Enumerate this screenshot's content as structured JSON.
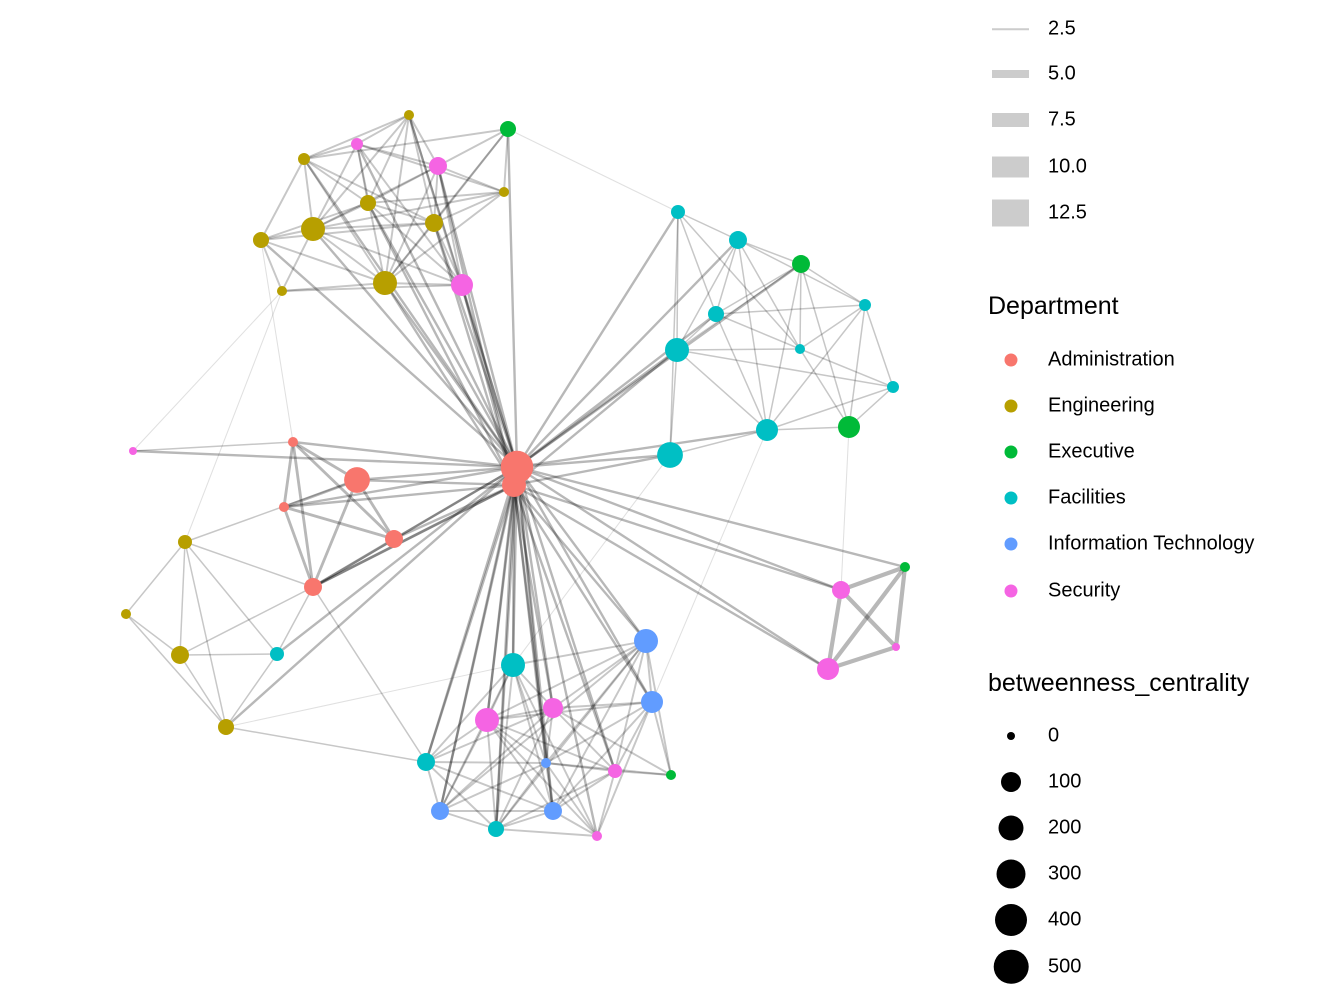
{
  "legend_weight": {
    "items": [
      {
        "label": "2.5",
        "value": 2.5
      },
      {
        "label": "5.0",
        "value": 5.0
      },
      {
        "label": "7.5",
        "value": 7.5
      },
      {
        "label": "10.0",
        "value": 10.0
      },
      {
        "label": "12.5",
        "value": 12.5
      }
    ],
    "color": "#CCCCCC"
  },
  "legend_department": {
    "title": "Department",
    "items": [
      {
        "label": "Administration",
        "color": "#F8766D"
      },
      {
        "label": "Engineering",
        "color": "#B79F00"
      },
      {
        "label": "Executive",
        "color": "#00BA38"
      },
      {
        "label": "Facilities",
        "color": "#00BFC4"
      },
      {
        "label": "Information Technology",
        "color": "#619CFF"
      },
      {
        "label": "Security",
        "color": "#F564E3"
      }
    ]
  },
  "legend_centrality": {
    "title": "betweenness_centrality",
    "items": [
      {
        "label": "0",
        "value": 0
      },
      {
        "label": "100",
        "value": 100
      },
      {
        "label": "200",
        "value": 200
      },
      {
        "label": "300",
        "value": 300
      },
      {
        "label": "400",
        "value": 400
      },
      {
        "label": "500",
        "value": 500
      }
    ]
  },
  "nodes": [
    {
      "dept": 0,
      "betweenness": 420
    },
    {
      "dept": 0,
      "betweenness": 180
    },
    {
      "dept": 0,
      "betweenness": 220
    },
    {
      "dept": 0,
      "betweenness": 17
    },
    {
      "dept": 0,
      "betweenness": 17
    },
    {
      "dept": 0,
      "betweenness": 83
    },
    {
      "dept": 0,
      "betweenness": 83
    },
    {
      "dept": 5,
      "betweenness": 0
    },
    {
      "dept": 1,
      "betweenness": 50
    },
    {
      "dept": 1,
      "betweenness": 17
    },
    {
      "dept": 1,
      "betweenness": 83
    },
    {
      "dept": 1,
      "betweenness": 67
    },
    {
      "dept": 3,
      "betweenness": 50
    },
    {
      "dept": 1,
      "betweenness": 17
    },
    {
      "dept": 2,
      "betweenness": 67
    },
    {
      "dept": 1,
      "betweenness": 33
    },
    {
      "dept": 5,
      "betweenness": 33
    },
    {
      "dept": 5,
      "betweenness": 83
    },
    {
      "dept": 1,
      "betweenness": 17
    },
    {
      "dept": 1,
      "betweenness": 67
    },
    {
      "dept": 1,
      "betweenness": 180
    },
    {
      "dept": 1,
      "betweenness": 83
    },
    {
      "dept": 1,
      "betweenness": 67
    },
    {
      "dept": 1,
      "betweenness": 180
    },
    {
      "dept": 5,
      "betweenness": 140
    },
    {
      "dept": 1,
      "betweenness": 17
    },
    {
      "dept": 3,
      "betweenness": 50
    },
    {
      "dept": 3,
      "betweenness": 83
    },
    {
      "dept": 2,
      "betweenness": 83
    },
    {
      "dept": 3,
      "betweenness": 33
    },
    {
      "dept": 3,
      "betweenness": 67
    },
    {
      "dept": 3,
      "betweenness": 180
    },
    {
      "dept": 3,
      "betweenness": 17
    },
    {
      "dept": 3,
      "betweenness": 33
    },
    {
      "dept": 3,
      "betweenness": 140
    },
    {
      "dept": 2,
      "betweenness": 140
    },
    {
      "dept": 3,
      "betweenness": 220
    },
    {
      "dept": 5,
      "betweenness": 83
    },
    {
      "dept": 2,
      "betweenness": 17
    },
    {
      "dept": 5,
      "betweenness": 0
    },
    {
      "dept": 5,
      "betweenness": 140
    },
    {
      "dept": 4,
      "betweenness": 180
    },
    {
      "dept": 3,
      "betweenness": 180
    },
    {
      "dept": 4,
      "betweenness": 140
    },
    {
      "dept": 5,
      "betweenness": 180
    },
    {
      "dept": 5,
      "betweenness": 100
    },
    {
      "dept": 3,
      "betweenness": 83
    },
    {
      "dept": 4,
      "betweenness": 17
    },
    {
      "dept": 5,
      "betweenness": 50
    },
    {
      "dept": 2,
      "betweenness": 17
    },
    {
      "dept": 4,
      "betweenness": 83
    },
    {
      "dept": 4,
      "betweenness": 83
    },
    {
      "dept": 3,
      "betweenness": 67
    },
    {
      "dept": 5,
      "betweenness": 17
    }
  ],
  "edge_groups": [
    {
      "weight": 4,
      "pairs": [
        [
          0,
          2
        ],
        [
          0,
          3
        ],
        [
          0,
          4
        ],
        [
          0,
          5
        ],
        [
          0,
          6
        ],
        [
          0,
          7
        ],
        [
          0,
          13
        ],
        [
          0,
          14
        ],
        [
          0,
          15
        ],
        [
          0,
          16
        ],
        [
          0,
          17
        ],
        [
          0,
          19
        ],
        [
          0,
          20
        ],
        [
          0,
          21
        ],
        [
          0,
          22
        ],
        [
          0,
          23
        ],
        [
          0,
          24
        ],
        [
          0,
          26
        ],
        [
          0,
          27
        ],
        [
          0,
          28
        ],
        [
          0,
          30
        ],
        [
          0,
          31
        ],
        [
          0,
          34
        ],
        [
          0,
          36
        ],
        [
          0,
          37
        ],
        [
          0,
          38
        ],
        [
          0,
          40
        ],
        [
          0,
          41
        ],
        [
          0,
          42
        ],
        [
          0,
          43
        ],
        [
          0,
          44
        ],
        [
          0,
          45
        ],
        [
          0,
          46
        ],
        [
          0,
          47
        ],
        [
          0,
          48
        ],
        [
          0,
          50
        ],
        [
          0,
          51
        ],
        [
          0,
          52
        ],
        [
          0,
          53
        ],
        [
          0,
          12
        ],
        [
          0,
          11
        ]
      ]
    },
    {
      "weight": 4,
      "pairs": [
        [
          1,
          2
        ],
        [
          1,
          5
        ],
        [
          1,
          6
        ],
        [
          1,
          4
        ],
        [
          1,
          23
        ],
        [
          1,
          24
        ],
        [
          1,
          21
        ],
        [
          1,
          42
        ],
        [
          1,
          44
        ],
        [
          1,
          45
        ],
        [
          1,
          46
        ],
        [
          1,
          47
        ],
        [
          1,
          48
        ],
        [
          1,
          50
        ],
        [
          1,
          51
        ],
        [
          1,
          52
        ],
        [
          1,
          41
        ],
        [
          1,
          43
        ],
        [
          1,
          36
        ],
        [
          1,
          31
        ],
        [
          1,
          40
        ],
        [
          1,
          37
        ],
        [
          1,
          19
        ],
        [
          1,
          17
        ]
      ]
    },
    {
      "weight": 5,
      "pairs": [
        [
          2,
          3
        ],
        [
          2,
          4
        ],
        [
          2,
          5
        ],
        [
          3,
          4
        ],
        [
          3,
          5
        ],
        [
          3,
          6
        ],
        [
          4,
          6
        ],
        [
          4,
          5
        ],
        [
          2,
          6
        ],
        [
          5,
          6
        ],
        [
          1,
          6
        ]
      ]
    },
    {
      "weight": 2,
      "pairs": [
        [
          6,
          8
        ],
        [
          6,
          10
        ],
        [
          6,
          12
        ],
        [
          8,
          9
        ],
        [
          8,
          10
        ],
        [
          8,
          11
        ],
        [
          8,
          12
        ],
        [
          9,
          10
        ],
        [
          9,
          11
        ],
        [
          10,
          11
        ],
        [
          10,
          12
        ],
        [
          11,
          12
        ],
        [
          8,
          2
        ],
        [
          7,
          3
        ],
        [
          11,
          46
        ],
        [
          6,
          46
        ]
      ]
    },
    {
      "weight": 3,
      "pairs": [
        [
          13,
          15
        ],
        [
          13,
          16
        ],
        [
          13,
          17
        ],
        [
          13,
          19
        ],
        [
          13,
          20
        ],
        [
          13,
          21
        ],
        [
          13,
          23
        ],
        [
          13,
          24
        ],
        [
          14,
          15
        ],
        [
          14,
          17
        ],
        [
          14,
          18
        ],
        [
          14,
          21
        ],
        [
          14,
          23
        ],
        [
          15,
          16
        ],
        [
          15,
          19
        ],
        [
          15,
          20
        ],
        [
          15,
          21
        ],
        [
          15,
          22
        ],
        [
          15,
          23
        ],
        [
          16,
          17
        ],
        [
          16,
          18
        ],
        [
          16,
          19
        ],
        [
          16,
          20
        ],
        [
          16,
          23
        ],
        [
          16,
          24
        ],
        [
          17,
          18
        ],
        [
          17,
          19
        ],
        [
          17,
          20
        ],
        [
          17,
          21
        ],
        [
          17,
          23
        ],
        [
          17,
          24
        ],
        [
          18,
          19
        ],
        [
          18,
          20
        ],
        [
          18,
          21
        ],
        [
          18,
          23
        ],
        [
          19,
          20
        ],
        [
          19,
          21
        ],
        [
          19,
          22
        ],
        [
          19,
          24
        ],
        [
          20,
          21
        ],
        [
          20,
          22
        ],
        [
          20,
          23
        ],
        [
          20,
          24
        ],
        [
          20,
          25
        ],
        [
          21,
          22
        ],
        [
          21,
          23
        ],
        [
          21,
          24
        ],
        [
          22,
          23
        ],
        [
          22,
          25
        ],
        [
          23,
          24
        ],
        [
          23,
          25
        ],
        [
          24,
          25
        ]
      ]
    },
    {
      "weight": 1,
      "pairs": [
        [
          25,
          7
        ],
        [
          22,
          3
        ],
        [
          14,
          26
        ],
        [
          36,
          42
        ],
        [
          8,
          25
        ],
        [
          11,
          42
        ],
        [
          34,
          43
        ],
        [
          35,
          37
        ]
      ]
    },
    {
      "weight": 2,
      "pairs": [
        [
          26,
          27
        ],
        [
          26,
          30
        ],
        [
          26,
          31
        ],
        [
          26,
          36
        ],
        [
          26,
          32
        ],
        [
          27,
          28
        ],
        [
          27,
          29
        ],
        [
          27,
          30
        ],
        [
          27,
          31
        ],
        [
          27,
          32
        ],
        [
          27,
          34
        ],
        [
          28,
          29
        ],
        [
          28,
          30
        ],
        [
          28,
          31
        ],
        [
          28,
          32
        ],
        [
          28,
          34
        ],
        [
          28,
          35
        ],
        [
          29,
          32
        ],
        [
          29,
          33
        ],
        [
          29,
          30
        ],
        [
          29,
          35
        ],
        [
          29,
          34
        ],
        [
          30,
          31
        ],
        [
          30,
          32
        ],
        [
          30,
          34
        ],
        [
          31,
          32
        ],
        [
          31,
          33
        ],
        [
          31,
          34
        ],
        [
          31,
          36
        ],
        [
          32,
          33
        ],
        [
          32,
          35
        ],
        [
          33,
          34
        ],
        [
          33,
          35
        ],
        [
          34,
          35
        ],
        [
          34,
          36
        ]
      ]
    },
    {
      "weight": 8,
      "pairs": [
        [
          37,
          38
        ],
        [
          37,
          39
        ],
        [
          37,
          40
        ],
        [
          38,
          39
        ],
        [
          38,
          40
        ],
        [
          39,
          40
        ]
      ]
    },
    {
      "weight": 3,
      "pairs": [
        [
          41,
          42
        ],
        [
          41,
          43
        ],
        [
          41,
          44
        ],
        [
          41,
          45
        ],
        [
          41,
          47
        ],
        [
          41,
          48
        ],
        [
          41,
          50
        ],
        [
          41,
          51
        ],
        [
          41,
          52
        ],
        [
          42,
          44
        ],
        [
          42,
          45
        ],
        [
          42,
          46
        ],
        [
          42,
          47
        ],
        [
          42,
          50
        ],
        [
          42,
          51
        ],
        [
          42,
          52
        ],
        [
          42,
          53
        ],
        [
          43,
          44
        ],
        [
          43,
          45
        ],
        [
          43,
          47
        ],
        [
          43,
          48
        ],
        [
          43,
          49
        ],
        [
          43,
          51
        ],
        [
          43,
          53
        ],
        [
          44,
          45
        ],
        [
          44,
          46
        ],
        [
          44,
          47
        ],
        [
          44,
          48
        ],
        [
          44,
          50
        ],
        [
          44,
          51
        ],
        [
          44,
          52
        ],
        [
          44,
          53
        ],
        [
          45,
          46
        ],
        [
          45,
          47
        ],
        [
          45,
          48
        ],
        [
          45,
          49
        ],
        [
          45,
          50
        ],
        [
          45,
          52
        ],
        [
          46,
          47
        ],
        [
          46,
          50
        ],
        [
          46,
          51
        ],
        [
          46,
          52
        ],
        [
          47,
          48
        ],
        [
          47,
          49
        ],
        [
          47,
          50
        ],
        [
          47,
          51
        ],
        [
          47,
          52
        ],
        [
          47,
          53
        ],
        [
          48,
          49
        ],
        [
          48,
          51
        ],
        [
          48,
          52
        ],
        [
          48,
          53
        ],
        [
          50,
          51
        ],
        [
          50,
          52
        ],
        [
          51,
          52
        ],
        [
          51,
          53
        ],
        [
          52,
          53
        ],
        [
          49,
          41
        ]
      ]
    }
  ]
}
